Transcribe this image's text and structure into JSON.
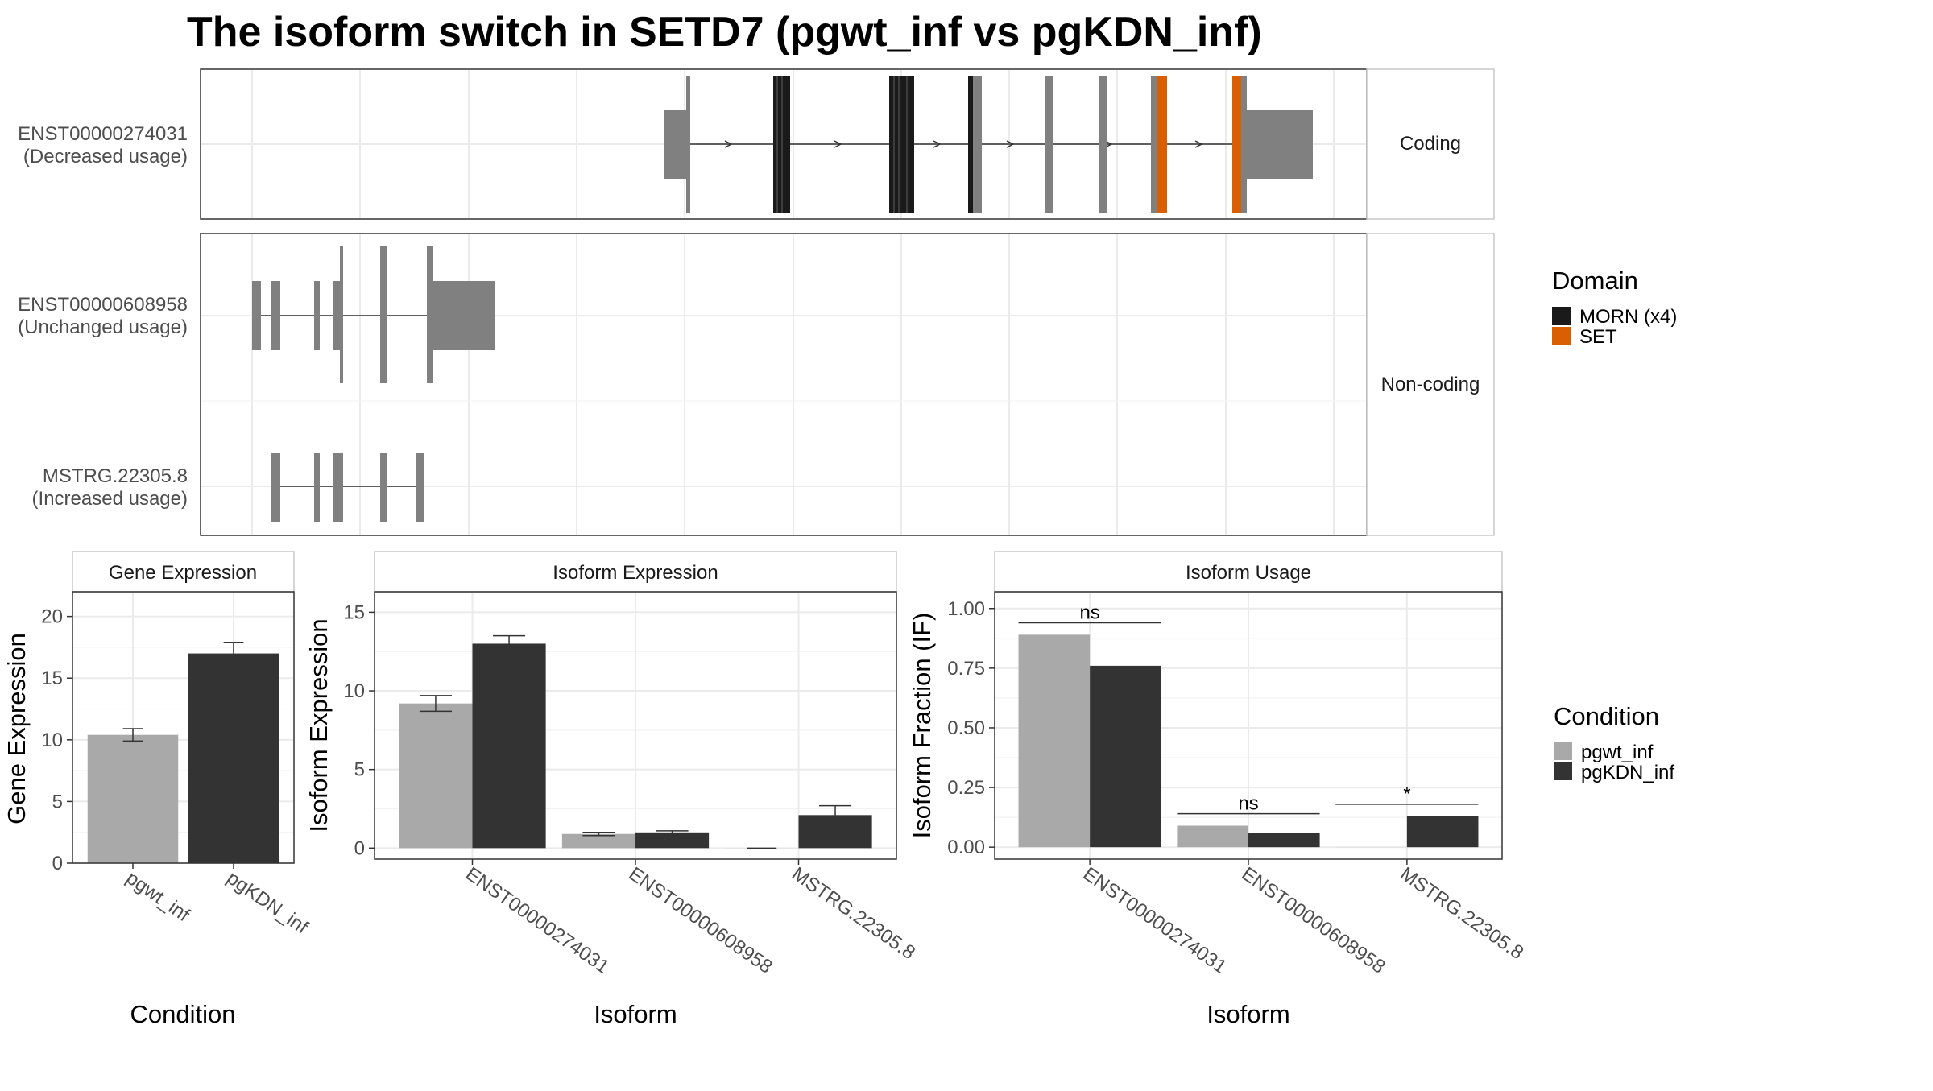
{
  "title": "The isoform switch in SETD7 (pgwt_inf vs pgKDN_inf)",
  "structure": {
    "facets": [
      "Coding",
      "Non-coding"
    ],
    "isoforms": [
      {
        "id": "ENST00000274031",
        "usage": "(Decreased usage)",
        "facet": "Coding"
      },
      {
        "id": "ENST00000608958",
        "usage": "(Unchanged usage)",
        "facet": "Non-coding"
      },
      {
        "id": "MSTRG.22305.8",
        "usage": "(Increased usage)",
        "facet": "Non-coding"
      }
    ]
  },
  "domain_legend": {
    "title": "Domain",
    "items": [
      {
        "label": "MORN (x4)",
        "color": "#1a1a1a"
      },
      {
        "label": "SET",
        "color": "#d95f02"
      }
    ]
  },
  "condition_legend": {
    "title": "Condition",
    "items": [
      {
        "label": "pgwt_inf",
        "color": "#a9a9a9"
      },
      {
        "label": "pgKDN_inf",
        "color": "#333333"
      }
    ]
  },
  "chart_data": [
    {
      "type": "bar",
      "title": "Gene Expression",
      "xlabel": "Condition",
      "ylabel": "Gene Expression",
      "categories": [
        "pgwt_inf",
        "pgKDN_inf"
      ],
      "values": [
        10.4,
        17.0
      ],
      "errors": [
        0.5,
        0.9
      ],
      "ylim": [
        0,
        22
      ],
      "yticks": [
        0,
        5,
        10,
        15,
        20
      ]
    },
    {
      "type": "bar",
      "title": "Isoform Expression",
      "xlabel": "Isoform",
      "ylabel": "Isoform Expression",
      "categories": [
        "ENST00000274031",
        "ENST00000608958",
        "MSTRG.22305.8"
      ],
      "series": [
        {
          "name": "pgwt_inf",
          "values": [
            9.2,
            0.9,
            0.0
          ],
          "errors": [
            0.5,
            0.1,
            0.0
          ]
        },
        {
          "name": "pgKDN_inf",
          "values": [
            13.0,
            1.0,
            2.1
          ],
          "errors": [
            0.5,
            0.1,
            0.6
          ]
        }
      ],
      "ylim": [
        -0.7,
        16.3
      ],
      "yticks": [
        0,
        5,
        10,
        15
      ]
    },
    {
      "type": "bar",
      "title": "Isoform Usage",
      "xlabel": "Isoform",
      "ylabel": "Isoform Fraction (IF)",
      "categories": [
        "ENST00000274031",
        "ENST00000608958",
        "MSTRG.22305.8"
      ],
      "series": [
        {
          "name": "pgwt_inf",
          "values": [
            0.89,
            0.09,
            0.0
          ]
        },
        {
          "name": "pgKDN_inf",
          "values": [
            0.76,
            0.06,
            0.13
          ]
        }
      ],
      "significance": [
        "ns",
        "ns",
        "*"
      ],
      "ylim": [
        -0.05,
        1.07
      ],
      "yticks": [
        0.0,
        0.25,
        0.5,
        0.75,
        1.0
      ],
      "ytick_labels": [
        "0.00",
        "0.25",
        "0.50",
        "0.75",
        "1.00"
      ]
    }
  ]
}
